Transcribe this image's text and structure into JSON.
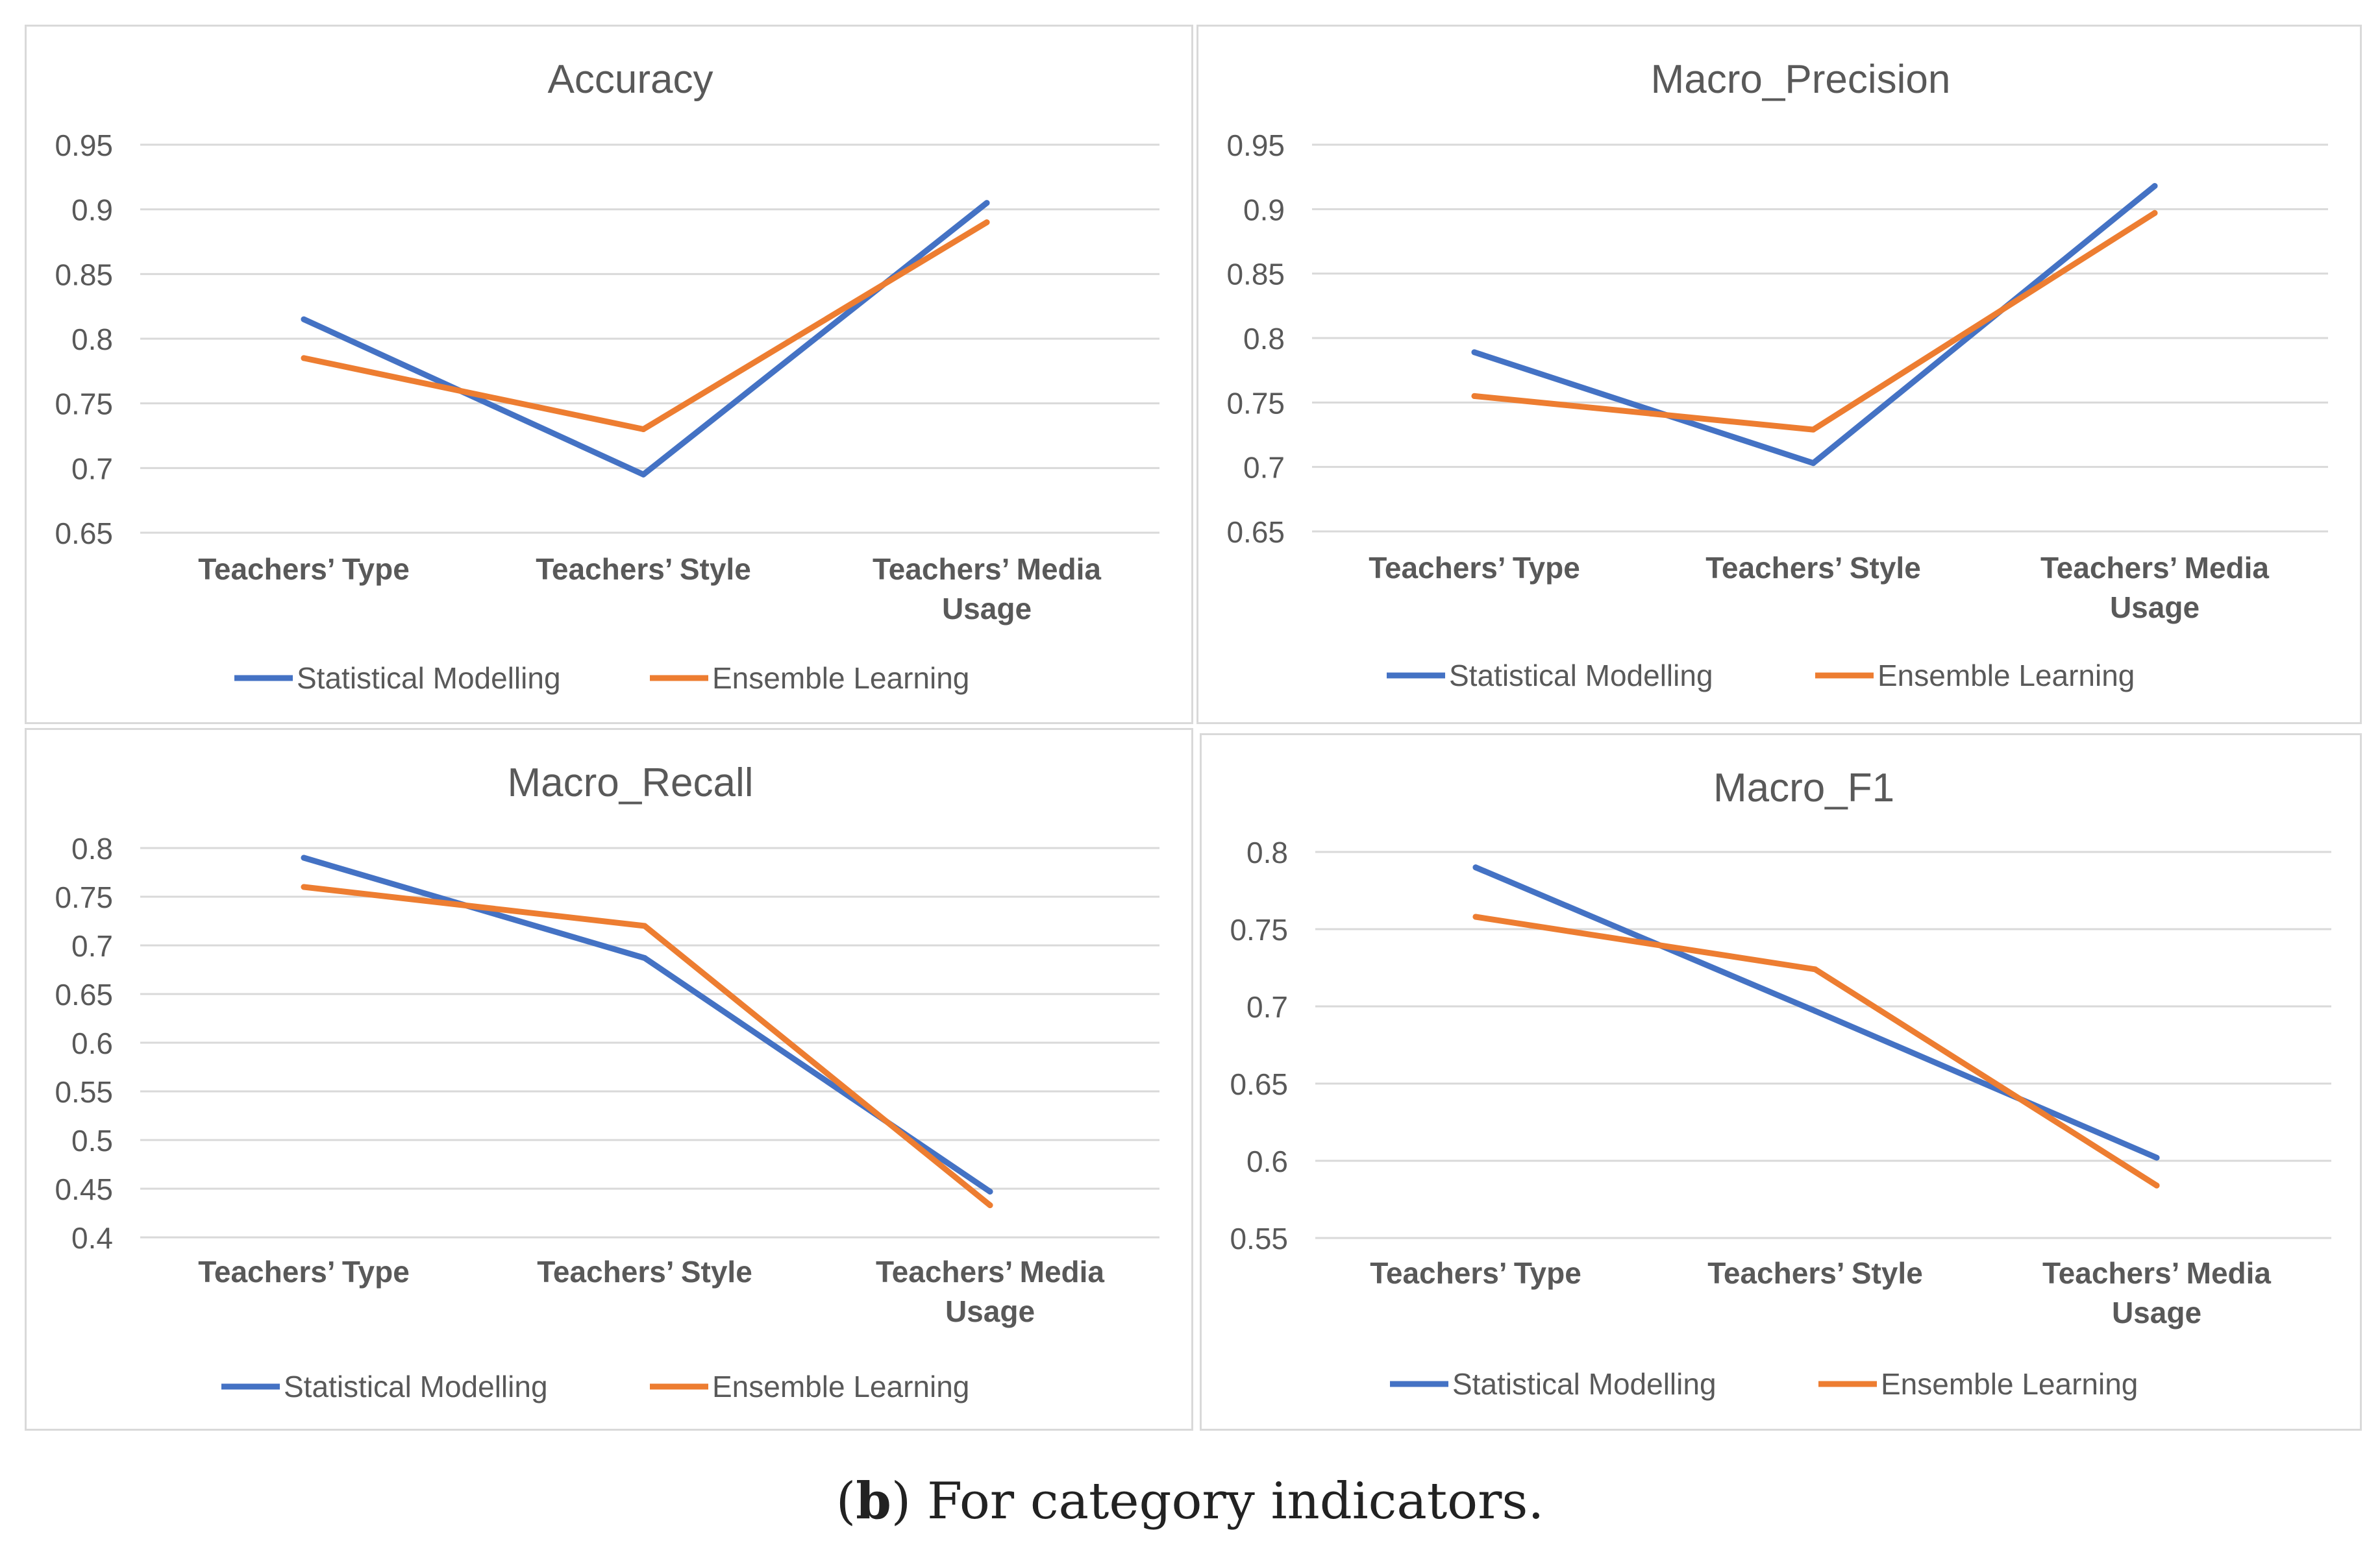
{
  "figure": {
    "caption_prefix": "(",
    "caption_letter": "b",
    "caption_text": ") For category indicators."
  },
  "colors": {
    "statistical": "#4472C4",
    "ensemble": "#ED7D31",
    "grid": "#d9d9d9",
    "text": "#595959"
  },
  "chart_data": [
    {
      "type": "line",
      "title": "Accuracy",
      "categories": [
        "Teachers’ Type",
        "Teachers’ Style",
        "Teachers’ Media Usage"
      ],
      "series": [
        {
          "name": "Statistical Modelling",
          "values": [
            0.815,
            0.695,
            0.905
          ]
        },
        {
          "name": "Ensemble Learning",
          "values": [
            0.785,
            0.73,
            0.89
          ]
        }
      ],
      "yticks": [
        "0.65",
        "0.7",
        "0.75",
        "0.8",
        "0.85",
        "0.9",
        "0.95"
      ],
      "ylim": [
        0.65,
        0.95
      ],
      "grid": true,
      "legend": "bottom"
    },
    {
      "type": "line",
      "title": "Macro_Precision",
      "categories": [
        "Teachers’ Type",
        "Teachers’ Style",
        "Teachers’ Media Usage"
      ],
      "series": [
        {
          "name": "Statistical Modelling",
          "values": [
            0.789,
            0.703,
            0.918
          ]
        },
        {
          "name": "Ensemble Learning",
          "values": [
            0.755,
            0.729,
            0.897
          ]
        }
      ],
      "yticks": [
        "0.65",
        "0.7",
        "0.75",
        "0.8",
        "0.85",
        "0.9",
        "0.95"
      ],
      "ylim": [
        0.65,
        0.95
      ],
      "grid": true,
      "legend": "bottom"
    },
    {
      "type": "line",
      "title": "Macro_Recall",
      "categories": [
        "Teachers’ Type",
        "Teachers’ Style",
        "Teachers’ Media Usage"
      ],
      "series": [
        {
          "name": "Statistical Modelling",
          "values": [
            0.79,
            0.687,
            0.447
          ]
        },
        {
          "name": "Ensemble Learning",
          "values": [
            0.76,
            0.72,
            0.433
          ]
        }
      ],
      "yticks": [
        "0.4",
        "0.45",
        "0.5",
        "0.55",
        "0.6",
        "0.65",
        "0.7",
        "0.75",
        "0.8"
      ],
      "ylim": [
        0.4,
        0.8
      ],
      "grid": true,
      "legend": "bottom"
    },
    {
      "type": "line",
      "title": "Macro_F1",
      "categories": [
        "Teachers’ Type",
        "Teachers’ Style",
        "Teachers’ Media Usage"
      ],
      "series": [
        {
          "name": "Statistical Modelling",
          "values": [
            0.79,
            0.697,
            0.602
          ]
        },
        {
          "name": "Ensemble Learning",
          "values": [
            0.758,
            0.724,
            0.584
          ]
        }
      ],
      "yticks": [
        "0.55",
        "0.6",
        "0.65",
        "0.7",
        "0.75",
        "0.8"
      ],
      "ylim": [
        0.55,
        0.8
      ],
      "grid": true,
      "legend": "bottom"
    }
  ]
}
